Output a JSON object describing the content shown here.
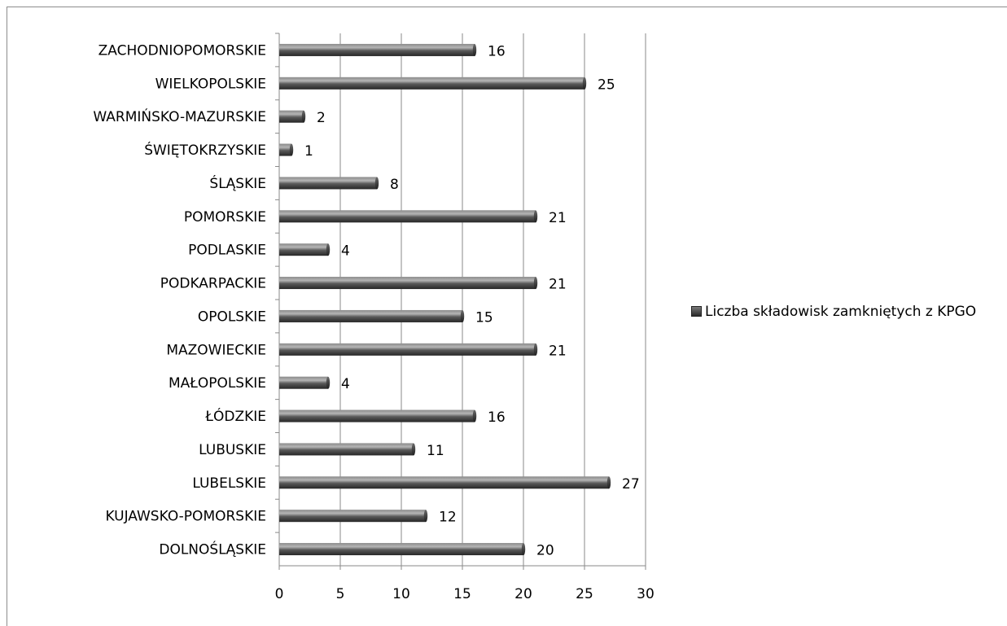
{
  "chart_data": {
    "type": "bar",
    "orientation": "horizontal",
    "categories": [
      "ZACHODNIOPOMORSKIE",
      "WIELKOPOLSKIE",
      "WARMIŃSKO-MAZURSKIE",
      "ŚWIĘTOKRZYSKIE",
      "ŚLĄSKIE",
      "POMORSKIE",
      "PODLASKIE",
      "PODKARPACKIE",
      "OPOLSKIE",
      "MAZOWIECKIE",
      "MAŁOPOLSKIE",
      "ŁÓDZKIE",
      "LUBUSKIE",
      "LUBELSKIE",
      "KUJAWSKO-POMORSKIE",
      "DOLNOŚLĄSKIE"
    ],
    "series": [
      {
        "name": "Liczba składowisk zamkniętych z KPGO",
        "values": [
          16,
          25,
          2,
          1,
          8,
          21,
          4,
          21,
          15,
          21,
          4,
          16,
          11,
          27,
          12,
          20
        ],
        "color": "#4a4a4a"
      }
    ],
    "xlim": [
      0,
      30
    ],
    "xticks": [
      "0",
      "5",
      "10",
      "15",
      "20",
      "25",
      "30"
    ],
    "grid": true,
    "legend_position": "right",
    "data_labels": true
  }
}
